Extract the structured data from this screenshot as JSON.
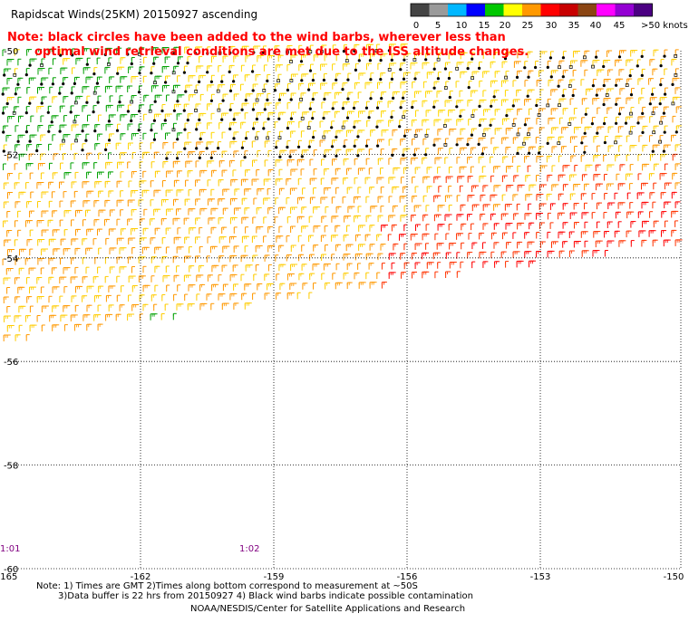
{
  "title": "Rapidscat Winds(25KM) 20150927 ascending",
  "note": {
    "line1": "Note: black circles have been added to the wind barbs, wherever less than",
    "line2": "optimal wind retrieval conditions are met due to the ISS altitude changes."
  },
  "colors": {
    "note_text": "#ff0000",
    "contaminated_barb": "#000000",
    "grid": "#000000",
    "pass_label": "#800080"
  },
  "speed_scale": {
    "unit_label": ">50 knots",
    "labels": [
      "0",
      "5",
      "10",
      "15",
      "20",
      "25",
      "30",
      "35",
      "40",
      "45"
    ],
    "swatches": [
      "#444444",
      "#9a9a9a",
      "#00b7ff",
      "#0000ff",
      "#00c800",
      "#ffff00",
      "#ff9900",
      "#ff0000",
      "#c80000",
      "#8b4513",
      "#ff00ff",
      "#9400d3",
      "#4b0082"
    ]
  },
  "axes": {
    "lat_labels": [
      "-50",
      "-52",
      "-54",
      "-56",
      "-58",
      "-60"
    ],
    "lon_labels": [
      "-165",
      "-162",
      "-159",
      "-156",
      "-153",
      "-150"
    ]
  },
  "passes": [
    "1:01",
    "1:02"
  ],
  "footnotes": {
    "line1": "Note: 1) Times are GMT 2)Times along bottom correspond to measurement at ~50S",
    "line2": "3)Data buffer is 22 hrs from 20150927 4) Black wind barbs indicate possible contamination"
  },
  "credit": "NOAA/NESDIS/Center for Satellite Applications and Research"
}
